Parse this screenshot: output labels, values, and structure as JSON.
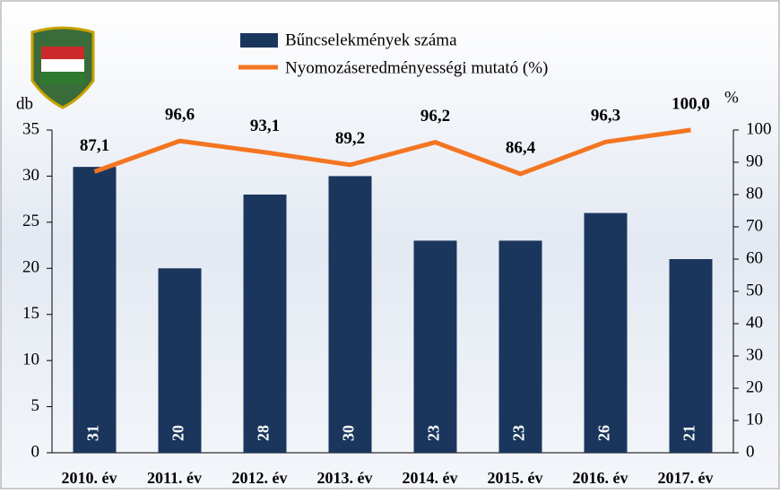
{
  "chart_data": {
    "type": "bar",
    "categories": [
      "2010. év",
      "2011. év",
      "2012. év",
      "2013. év",
      "2014. év",
      "2015. év",
      "2016. év",
      "2017. év"
    ],
    "series": [
      {
        "name": "Bűncselekmények száma",
        "color": "#1b365d",
        "values": [
          31,
          20,
          28,
          30,
          23,
          23,
          26,
          21
        ]
      },
      {
        "name": "Nyomozáseredményességi mutató (%)",
        "color": "#f47521",
        "axis": "y2",
        "type": "line",
        "values": [
          87.1,
          96.6,
          93.1,
          89.2,
          96.2,
          86.4,
          96.3,
          100.0
        ],
        "value_labels": [
          "87,1",
          "96,6",
          "93,1",
          "89,2",
          "96,2",
          "86,4",
          "96,3",
          "100,0"
        ]
      }
    ],
    "ylabel": "db",
    "y2label": "%",
    "ylim": [
      0,
      35
    ],
    "yticks": [
      0,
      5,
      10,
      15,
      20,
      25,
      30,
      35
    ],
    "y2lim": [
      0,
      100
    ],
    "y2ticks": [
      0,
      10,
      20,
      30,
      40,
      50,
      60,
      70,
      80,
      90,
      100
    ],
    "legend": "top"
  }
}
